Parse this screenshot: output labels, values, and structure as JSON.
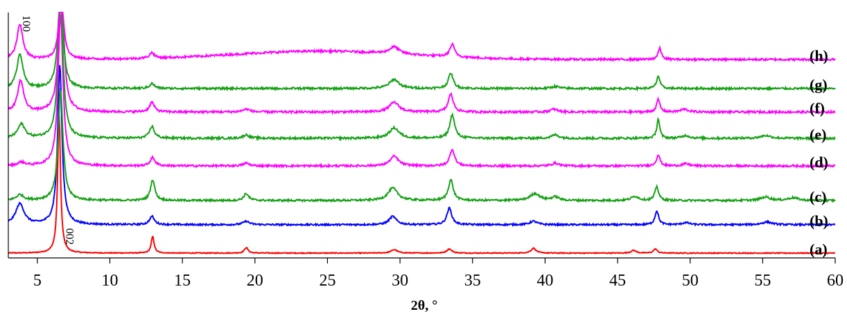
{
  "chart_data": {
    "type": "line",
    "xlabel": "2θ, °",
    "ylabel": "",
    "xlim": [
      3,
      60
    ],
    "xticks": [
      5,
      10,
      15,
      20,
      25,
      30,
      35,
      40,
      45,
      50,
      55,
      60
    ],
    "xtick_labels": [
      "5",
      "10",
      "15",
      "20",
      "25",
      "30",
      "35",
      "40",
      "45",
      "50",
      "55",
      "60"
    ],
    "grid": false,
    "legend": "none",
    "annotations": [
      {
        "text": "100",
        "x": 4.0
      },
      {
        "text": "002",
        "x": 7.0
      }
    ],
    "series": [
      {
        "name": "(a)",
        "color": "#ff0000",
        "baseline": 366,
        "noise": 0.6,
        "peaks": [
          [
            6.5,
            200,
            0.12
          ],
          [
            12.95,
            24,
            0.12
          ],
          [
            19.4,
            8,
            0.15
          ],
          [
            29.6,
            5,
            0.25
          ],
          [
            33.4,
            6,
            0.2
          ],
          [
            39.2,
            7,
            0.2
          ],
          [
            46.1,
            4,
            0.2
          ],
          [
            47.6,
            6,
            0.15
          ]
        ]
      },
      {
        "name": "(b)",
        "color": "#0000ff",
        "baseline": 325,
        "noise": 1.2,
        "peaks": [
          [
            3.8,
            30,
            0.35
          ],
          [
            6.55,
            230,
            0.18
          ],
          [
            12.9,
            12,
            0.2
          ],
          [
            19.4,
            5,
            0.25
          ],
          [
            29.5,
            12,
            0.3
          ],
          [
            33.4,
            24,
            0.2
          ],
          [
            39.2,
            5,
            0.3
          ],
          [
            47.7,
            20,
            0.15
          ],
          [
            49.7,
            3,
            0.3
          ],
          [
            55.3,
            4,
            0.4
          ]
        ]
      },
      {
        "name": "(c)",
        "color": "#16a116",
        "baseline": 290,
        "noise": 1.4,
        "peaks": [
          [
            3.8,
            8,
            0.3
          ],
          [
            6.6,
            160,
            0.2
          ],
          [
            12.95,
            30,
            0.18
          ],
          [
            19.4,
            10,
            0.2
          ],
          [
            29.5,
            18,
            0.4
          ],
          [
            33.5,
            30,
            0.2
          ],
          [
            39.3,
            10,
            0.4
          ],
          [
            40.7,
            5,
            0.3
          ],
          [
            46.2,
            6,
            0.3
          ],
          [
            47.7,
            20,
            0.15
          ],
          [
            55.2,
            5,
            0.4
          ],
          [
            57.1,
            4,
            0.4
          ]
        ]
      },
      {
        "name": "(d)",
        "color": "#ff00ff",
        "baseline": 240,
        "noise": 1.4,
        "peaks": [
          [
            3.9,
            5,
            0.3
          ],
          [
            6.6,
            220,
            0.2
          ],
          [
            12.95,
            12,
            0.2
          ],
          [
            19.4,
            4,
            0.25
          ],
          [
            29.6,
            14,
            0.35
          ],
          [
            33.6,
            24,
            0.2
          ],
          [
            40.7,
            4,
            0.3
          ],
          [
            47.8,
            16,
            0.15
          ],
          [
            49.7,
            3,
            0.3
          ]
        ]
      },
      {
        "name": "(e)",
        "color": "#16a116",
        "baseline": 200,
        "noise": 1.5,
        "peaks": [
          [
            3.9,
            20,
            0.3
          ],
          [
            6.6,
            210,
            0.2
          ],
          [
            12.9,
            17,
            0.2
          ],
          [
            19.4,
            5,
            0.25
          ],
          [
            29.6,
            15,
            0.4
          ],
          [
            33.6,
            34,
            0.2
          ],
          [
            40.7,
            5,
            0.3
          ],
          [
            47.8,
            28,
            0.12
          ],
          [
            49.7,
            4,
            0.3
          ],
          [
            55.2,
            4,
            0.4
          ]
        ]
      },
      {
        "name": "(f)",
        "color": "#ff00ff",
        "baseline": 162,
        "noise": 1.5,
        "peaks": [
          [
            3.85,
            45,
            0.25
          ],
          [
            6.65,
            200,
            0.2
          ],
          [
            12.9,
            14,
            0.2
          ],
          [
            19.4,
            4,
            0.3
          ],
          [
            29.6,
            14,
            0.4
          ],
          [
            33.5,
            26,
            0.2
          ],
          [
            40.6,
            4,
            0.3
          ],
          [
            47.8,
            18,
            0.14
          ],
          [
            49.6,
            4,
            0.3
          ]
        ]
      },
      {
        "name": "(g)",
        "color": "#16a116",
        "baseline": 128,
        "noise": 1.5,
        "peaks": [
          [
            3.8,
            50,
            0.25
          ],
          [
            6.6,
            150,
            0.2
          ],
          [
            12.9,
            7,
            0.2
          ],
          [
            29.6,
            13,
            0.4
          ],
          [
            33.5,
            22,
            0.2
          ],
          [
            40.7,
            3,
            0.3
          ],
          [
            47.8,
            18,
            0.14
          ]
        ]
      },
      {
        "name": "(h)",
        "color": "#ff00ff",
        "baseline": 86,
        "noise": 1.5,
        "peaks": [
          [
            3.8,
            50,
            0.25
          ],
          [
            6.65,
            90,
            0.2
          ],
          [
            12.9,
            8,
            0.2
          ],
          [
            29.6,
            10,
            0.4
          ],
          [
            33.6,
            18,
            0.2
          ],
          [
            47.9,
            16,
            0.14
          ]
        ],
        "hump": [
          24.5,
          12,
          6.0
        ]
      }
    ]
  }
}
